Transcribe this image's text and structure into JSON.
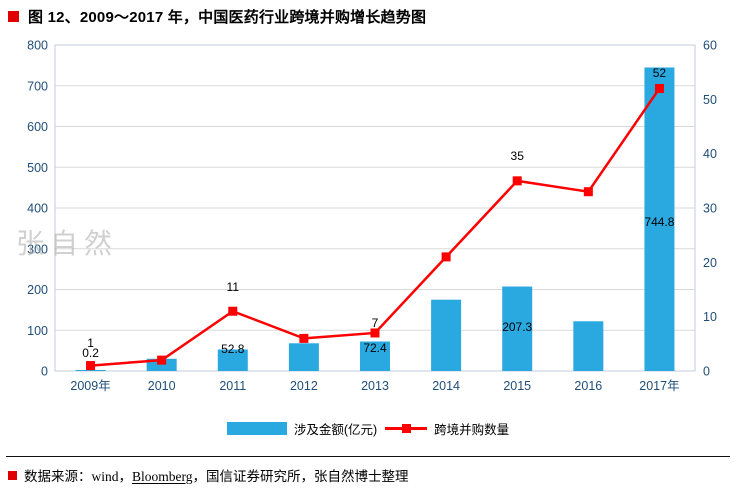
{
  "header": {
    "title": "图 12、2009～2017 年，中国医药行业跨境并购增长趋势图"
  },
  "watermark": "张自然",
  "legend": {
    "bar_label": "涉及金额(亿元)",
    "line_label": "跨境并购数量"
  },
  "footer": {
    "source_prefix": "数据来源：wind，",
    "source_link": "Bloomberg",
    "source_suffix": "，国信证券研究所，张自然博士整理"
  },
  "colors": {
    "bar": "#29a9e0",
    "line": "#fe0000",
    "accent_red": "#e00000",
    "grid": "#d9d9d9",
    "axis": "#a6a6a6",
    "plot_border": "#c3cedb",
    "tick_label": "#1f4e79",
    "data_label": "#000000"
  },
  "chart_data": {
    "type": "bar+line combo",
    "title": "图 12、2009～2017 年，中国医药行业跨境并购增长趋势图",
    "categories": [
      "2009年",
      "2010",
      "2011",
      "2012",
      "2013",
      "2014",
      "2015",
      "2016",
      "2017年"
    ],
    "series": [
      {
        "name": "涉及金额(亿元)",
        "chart": "bar",
        "axis": "left",
        "values": [
          0.2,
          30,
          52.8,
          68,
          72.4,
          175,
          207.3,
          122,
          744.8
        ],
        "value_labels": {
          "0": "0.2",
          "2": "52.8",
          "4": "72.4",
          "6": "207.3",
          "8": "744.8"
        }
      },
      {
        "name": "跨境并购数量",
        "chart": "line",
        "axis": "right",
        "values": [
          1,
          2,
          11,
          6,
          7,
          21,
          35,
          33,
          52
        ],
        "value_labels": {
          "0": "1",
          "2": "11",
          "4": "7",
          "6": "35",
          "8": "52"
        }
      }
    ],
    "left_axis": {
      "min": 0,
      "max": 800,
      "step": 100
    },
    "right_axis": {
      "min": 0,
      "max": 60,
      "step": 10
    },
    "grid": true,
    "legend_position": "bottom"
  }
}
